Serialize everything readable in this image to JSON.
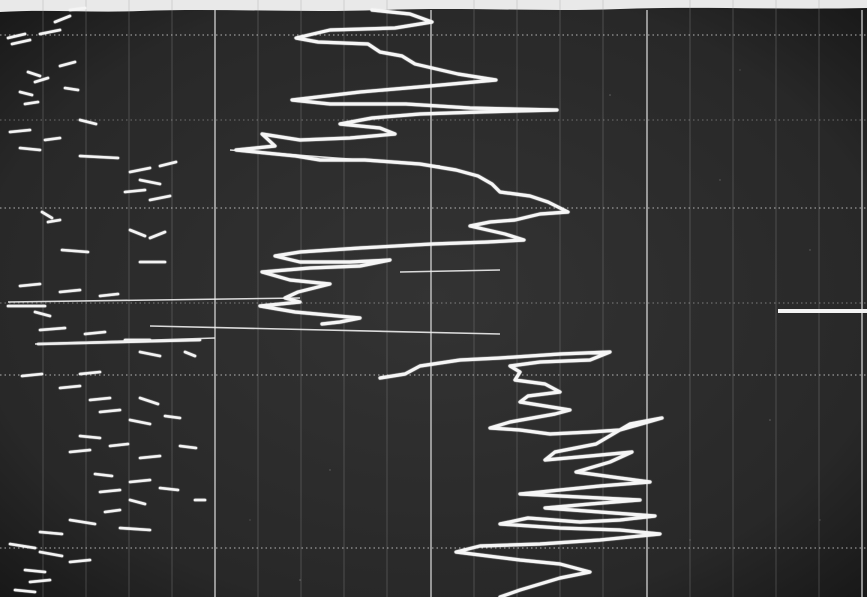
{
  "photo": {
    "subject": "oscilloscope-trace-photograph",
    "background_color": "#2a2a2a",
    "grid_color": "#d8d8d8",
    "trace_color": "#f4f4f4",
    "grid": {
      "major_vertical_count": 4,
      "minor_vertical_count": 20,
      "major_horizontal_count": 5
    }
  }
}
